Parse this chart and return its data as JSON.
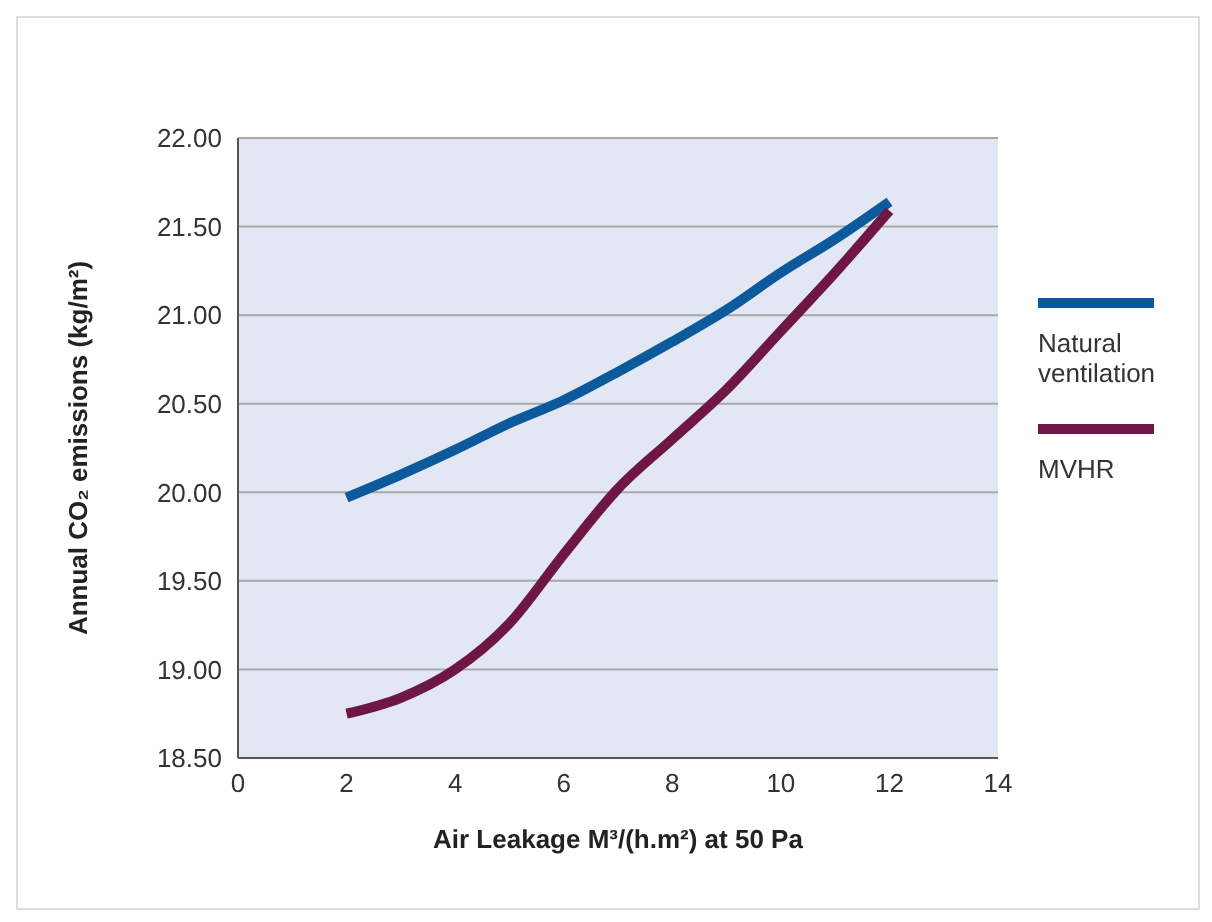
{
  "chart_data": {
    "type": "line",
    "xlabel": "Air Leakage M³/(h.m²) at 50 Pa",
    "ylabel": "Annual CO₂ emissions (kg/m²)",
    "xlim": [
      0,
      14
    ],
    "xticks": [
      0,
      2,
      4,
      6,
      8,
      10,
      12,
      14
    ],
    "ylim": [
      18.5,
      22
    ],
    "yticks": [
      {
        "value": 18.5,
        "label": "18.50"
      },
      {
        "value": 19,
        "label": "19.00"
      },
      {
        "value": 19.5,
        "label": "19.50"
      },
      {
        "value": 20,
        "label": "20.00"
      },
      {
        "value": 20.5,
        "label": "20.50"
      },
      {
        "value": 21,
        "label": "21.00"
      },
      {
        "value": 21.5,
        "label": "21.50"
      },
      {
        "value": 22,
        "label": "22.00"
      }
    ],
    "grid": "y",
    "legend": "right",
    "marker": "none",
    "line_style": "solid",
    "series": [
      {
        "name": "Natural ventilation",
        "color": "#0c5a9c",
        "x": [
          2,
          3,
          4,
          5,
          6,
          7,
          8,
          9,
          10,
          11,
          12
        ],
        "values": [
          19.97,
          20.1,
          20.24,
          20.39,
          20.52,
          20.68,
          20.85,
          21.03,
          21.24,
          21.43,
          21.64
        ]
      },
      {
        "name": "MVHR",
        "color": "#6e1744",
        "x": [
          2,
          3,
          4,
          5,
          6,
          7,
          8,
          9,
          10,
          11,
          12
        ],
        "values": [
          18.75,
          18.84,
          19.0,
          19.26,
          19.65,
          20.02,
          20.3,
          20.58,
          20.91,
          21.24,
          21.59
        ]
      }
    ]
  }
}
